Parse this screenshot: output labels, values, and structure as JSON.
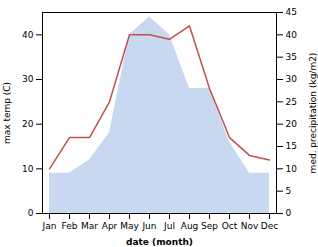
{
  "chart_data": {
    "type": "line",
    "categories": [
      "Jan",
      "Feb",
      "Mar",
      "Apr",
      "May",
      "Jun",
      "Jul",
      "Aug",
      "Sep",
      "Oct",
      "Nov",
      "Dec"
    ],
    "series": [
      {
        "type": "area",
        "axis": "y2",
        "color": "#c8d8f0",
        "values": [
          9,
          9,
          12,
          18,
          40,
          44,
          40,
          28,
          28,
          16,
          9,
          9
        ]
      },
      {
        "type": "line",
        "color": "#c0504d",
        "values": [
          10,
          17,
          17,
          25,
          40,
          40,
          39,
          42,
          28,
          17,
          13,
          12
        ]
      }
    ],
    "xlabel": "date (month)",
    "ylabel": "max temp (C)",
    "y2label": "med. precipitation (kg/m2)",
    "ylim": [
      0,
      45
    ],
    "yticks": [
      0,
      10,
      20,
      30,
      40
    ],
    "y2lim": [
      0,
      45
    ],
    "y2ticks": [
      0,
      5,
      10,
      15,
      20,
      25,
      30,
      35,
      40,
      45
    ]
  }
}
